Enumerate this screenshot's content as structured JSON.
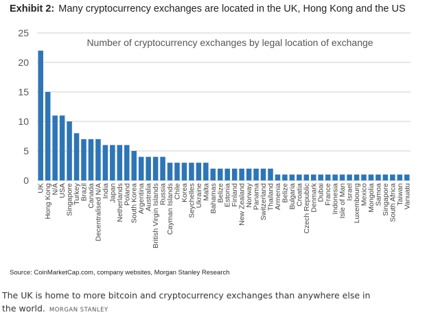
{
  "exhibit": {
    "label": "Exhibit 2:",
    "title": "Many cryptocurrency exchanges are located in the UK, Hong Kong and the US",
    "source": "Source: CoinMarketCap.com, company websites, Morgan Stanley Research"
  },
  "caption": {
    "text": "The UK is home to more bitcoin and cryptocurrency exchanges than anywhere else in the world.",
    "credit": "MORGAN STANLEY"
  },
  "colors": {
    "bar": "#2e75b6",
    "grid": "#cfcfcf"
  },
  "chart_data": {
    "type": "bar",
    "title": "Number of cryptocurrency exchanges by legal location of exchange",
    "ylim": [
      0,
      25
    ],
    "yticks": [
      0,
      5,
      10,
      15,
      20,
      25
    ],
    "grid": true,
    "categories": [
      "UK",
      "Hong Kong",
      "N/A",
      "USA",
      "Singapore",
      "Turkey",
      "Brazil",
      "Canada",
      "Decentralised N/A",
      "India",
      "Japan",
      "Netherlands",
      "Poland",
      "South Korea",
      "Argentina",
      "Australia",
      "British Virgin Islands",
      "Russia",
      "Cayman Islands",
      "Chile",
      "Korea",
      "Seychelles",
      "Ukraine",
      "Malta",
      "Bahamas",
      "Belize",
      "Estonia",
      "Finland",
      "New Zealand",
      "Norway",
      "Panama",
      "Switzerland",
      "Thailand",
      "Armenia",
      "Belize",
      "Bulgaria",
      "Croatia",
      "Czech Republic",
      "Denmark",
      "Dubai",
      "France",
      "Indonesia",
      "Isle of Man",
      "Israel",
      "Luxembourg",
      "Mexico",
      "Mongolia",
      "Samoa",
      "Singapore",
      "South Africa",
      "Taiwan",
      "Vanuatu"
    ],
    "values": [
      22,
      15,
      11,
      11,
      10,
      8,
      7,
      7,
      7,
      6,
      6,
      6,
      6,
      5,
      4,
      4,
      4,
      4,
      3,
      3,
      3,
      3,
      3,
      3,
      2,
      2,
      2,
      2,
      2,
      2,
      2,
      2,
      2,
      1,
      1,
      1,
      1,
      1,
      1,
      1,
      1,
      1,
      1,
      1,
      1,
      1,
      1,
      1,
      1,
      1,
      1,
      1
    ]
  }
}
